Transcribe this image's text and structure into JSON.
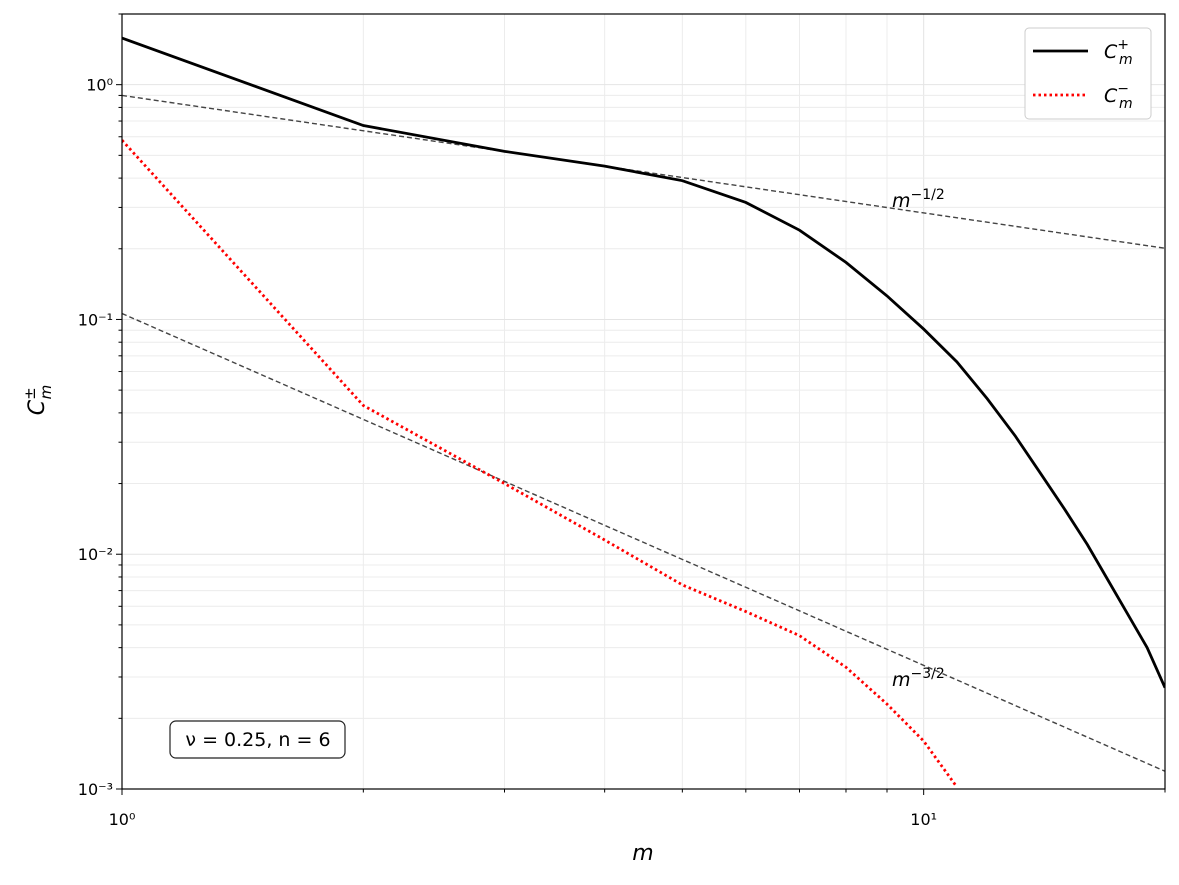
{
  "chart_data": {
    "type": "line",
    "log_x": true,
    "log_y": true,
    "grid": true,
    "legend_position": "upper right",
    "x_label": "m",
    "y_label": {
      "base": "C",
      "sub": "m",
      "sup": "±"
    },
    "xlim": [
      1,
      20
    ],
    "ylim": [
      0.001,
      2
    ],
    "xticks": [
      {
        "value": 1,
        "label": "10⁰"
      },
      {
        "value": 10,
        "label": "10¹"
      }
    ],
    "yticks": [
      {
        "value": 0.001,
        "label": "10⁻³"
      },
      {
        "value": 0.01,
        "label": "10⁻²"
      },
      {
        "value": 0.1,
        "label": "10⁻¹"
      },
      {
        "value": 1,
        "label": "10⁰"
      }
    ],
    "xminorticks": [
      2,
      3,
      4,
      5,
      6,
      7,
      8,
      9,
      20
    ],
    "yminorticks": [
      0.002,
      0.003,
      0.004,
      0.005,
      0.006,
      0.007,
      0.008,
      0.009,
      0.02,
      0.03,
      0.04,
      0.05,
      0.06,
      0.07,
      0.08,
      0.09,
      0.2,
      0.3,
      0.4,
      0.5,
      0.6,
      0.7,
      0.8,
      0.9,
      2
    ],
    "x": [
      1,
      2,
      3,
      4,
      5,
      6,
      7,
      8,
      9,
      10,
      11,
      12,
      13,
      14,
      15,
      16,
      17,
      18,
      19,
      20
    ],
    "series": [
      {
        "name": "C",
        "name_sub": "m",
        "name_sup": "+",
        "color": "#000000",
        "style": "solid",
        "values": [
          1.58,
          0.67,
          0.52,
          0.45,
          0.39,
          0.315,
          0.24,
          0.175,
          0.126,
          0.091,
          0.066,
          0.046,
          0.032,
          0.022,
          0.0155,
          0.011,
          0.0077,
          0.0055,
          0.004,
          0.0027
        ]
      },
      {
        "name": "C",
        "name_sub": "m",
        "name_sup": "−",
        "color": "#ff0000",
        "style": "dotted",
        "values": [
          0.58,
          0.043,
          0.02,
          0.0115,
          0.0074,
          0.0057,
          0.0045,
          0.0033,
          0.0023,
          0.0016,
          0.00102,
          null,
          null,
          null,
          null,
          null,
          null,
          null,
          null,
          null
        ]
      }
    ],
    "reference_lines": [
      {
        "x": [
          1,
          20
        ],
        "values": [
          0.9,
          0.201
        ],
        "color": "#444444",
        "label": "m",
        "label_sup": "−1/2"
      },
      {
        "x": [
          1,
          20
        ],
        "values": [
          0.106,
          0.00119
        ],
        "color": "#444444",
        "label": "m",
        "label_sup": "−3/2"
      }
    ],
    "annotation": "ν = 0.25, n = 6"
  }
}
